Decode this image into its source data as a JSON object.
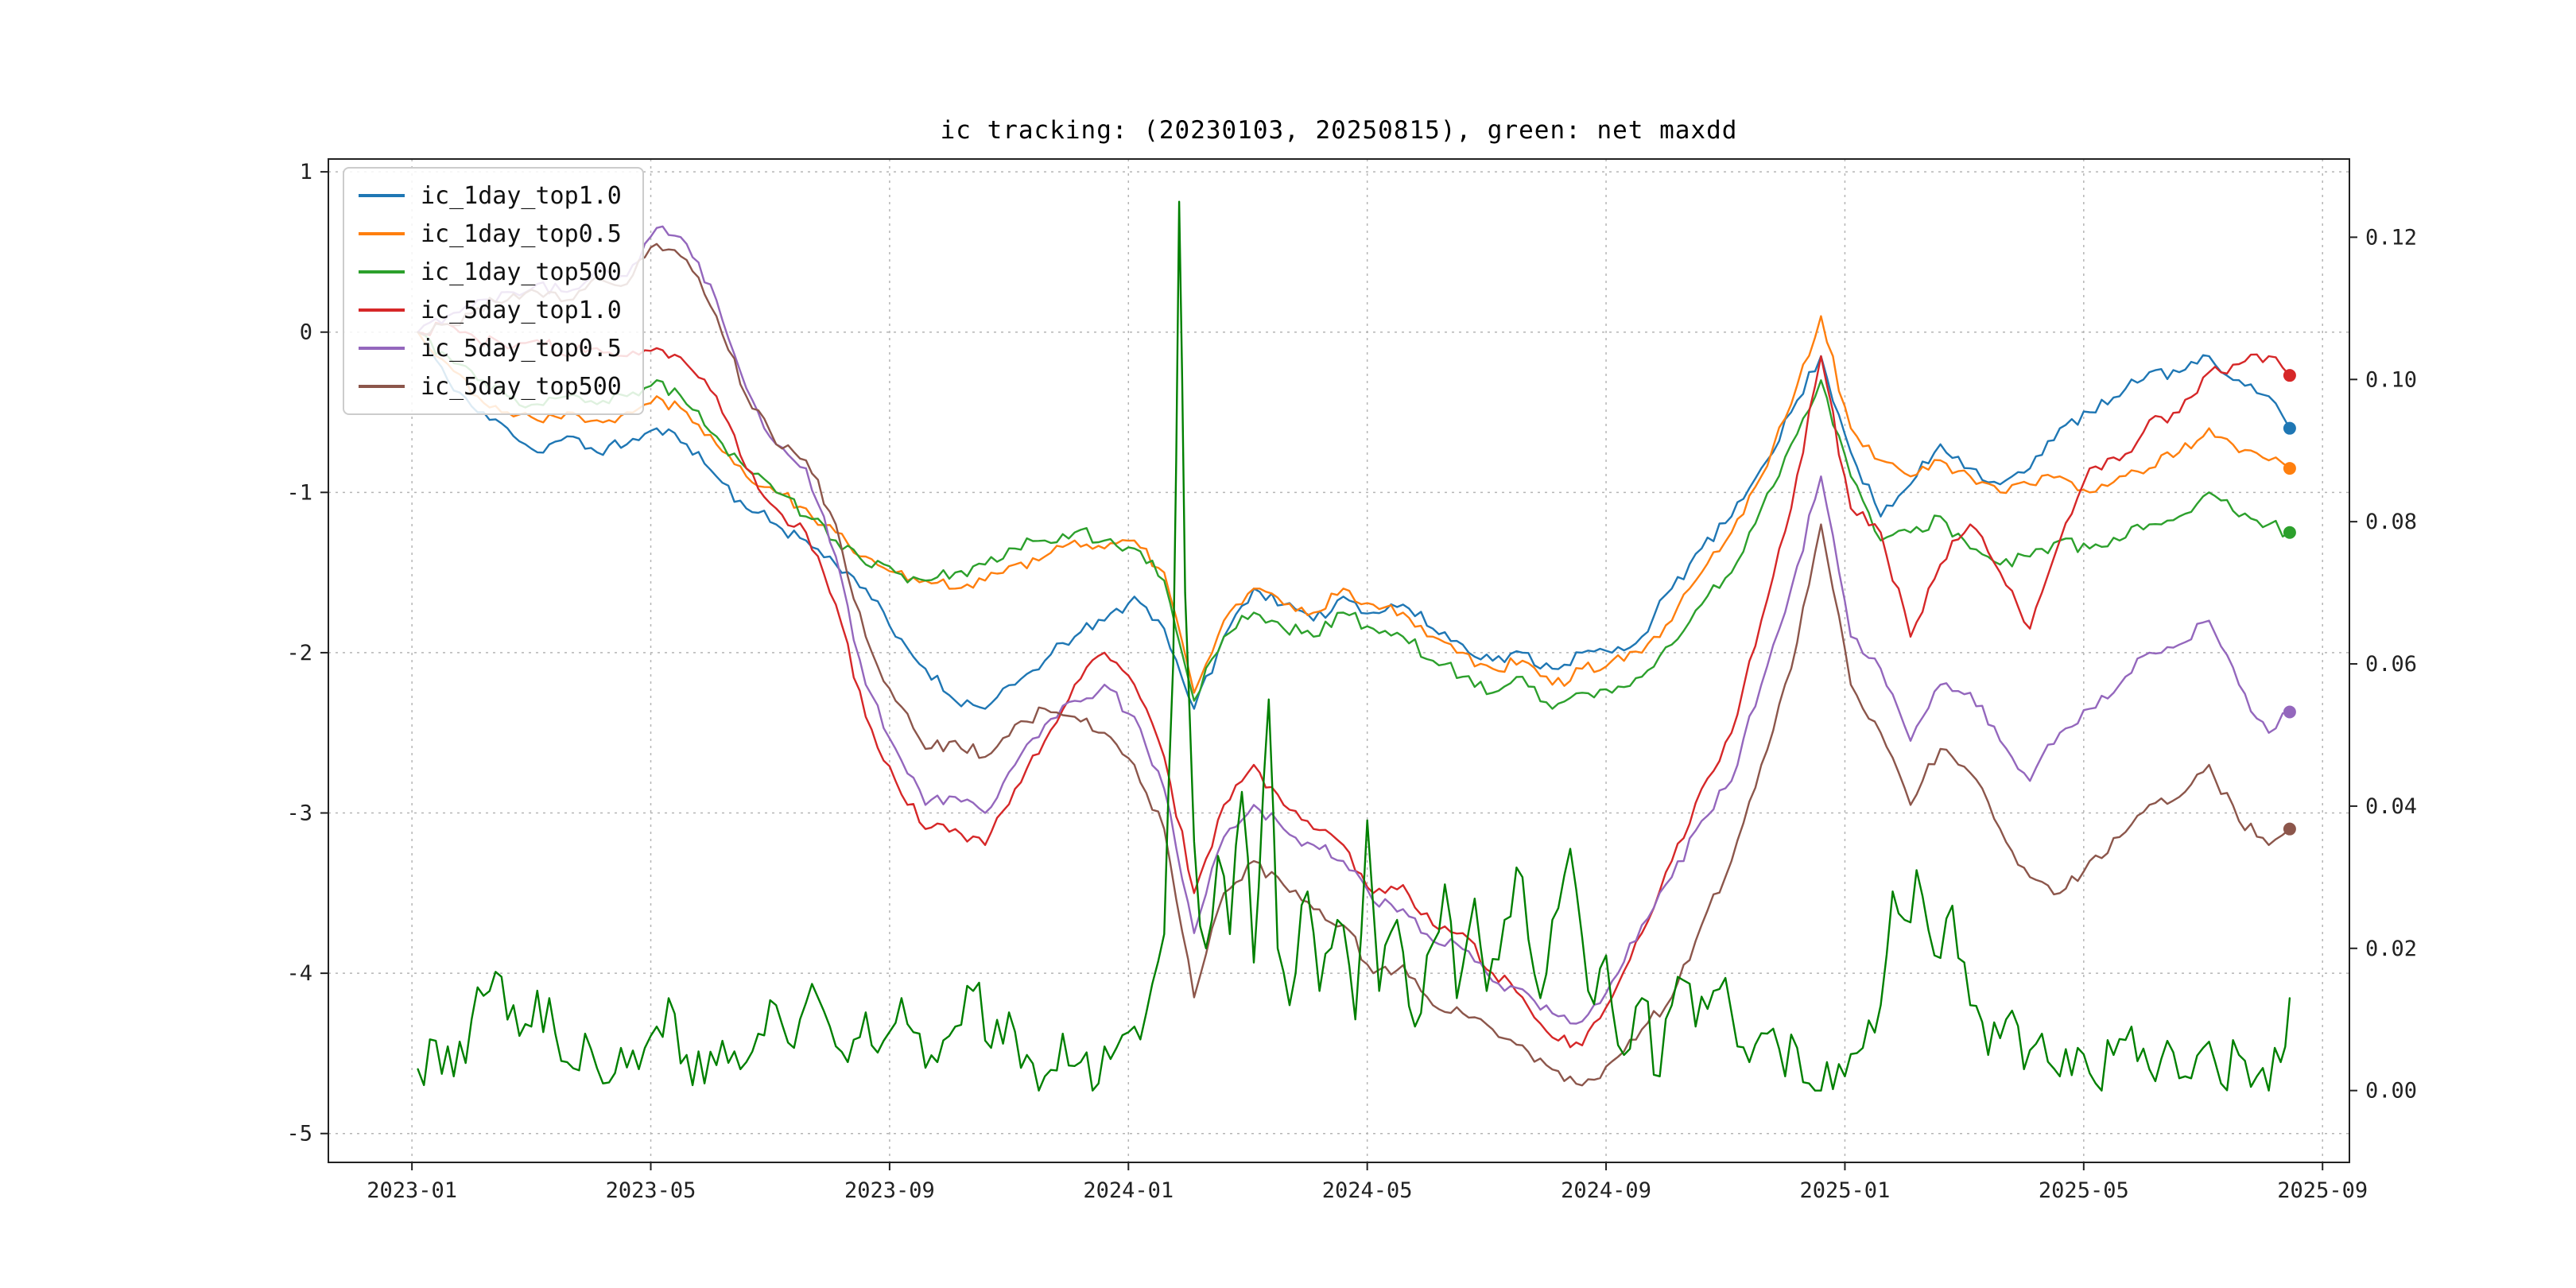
{
  "chart_data": {
    "type": "line",
    "title": "ic tracking: (20230103, 20250815), green: net maxdd",
    "xlabel": "",
    "ylabel_left": "",
    "ylabel_right": "",
    "grid": true,
    "legend_position": "upper-left",
    "xlim": [
      -1.4,
      32.45
    ],
    "left_ylim": [
      -5.18,
      1.08
    ],
    "right_ylim": [
      -0.0101,
      0.131
    ],
    "x_tick_positions": [
      0,
      4,
      8,
      12,
      16,
      20,
      24,
      28,
      32
    ],
    "x_tick_labels": [
      "2023-01",
      "2023-05",
      "2023-09",
      "2024-01",
      "2024-05",
      "2024-09",
      "2025-01",
      "2025-05",
      "2025-09"
    ],
    "left_tick_values": [
      1,
      0,
      -1,
      -2,
      -3,
      -4,
      -5
    ],
    "left_tick_labels": [
      "1",
      "0",
      "-1",
      "-2",
      "-3",
      "-4",
      "-5"
    ],
    "right_tick_values": [
      0.0,
      0.02,
      0.04,
      0.06,
      0.08,
      0.1,
      0.12
    ],
    "right_tick_labels": [
      "0.00",
      "0.02",
      "0.04",
      "0.06",
      "0.08",
      "0.10",
      "0.12"
    ],
    "ic_x": [
      0.1,
      0.6,
      1.1,
      1.6,
      2.1,
      2.6,
      3.1,
      3.6,
      4.1,
      4.6,
      5.1,
      5.6,
      6.1,
      6.6,
      7.1,
      7.6,
      8.1,
      8.6,
      9.1,
      9.6,
      10.1,
      10.6,
      11.1,
      11.6,
      12.1,
      12.6,
      13.1,
      13.6,
      14.1,
      14.6,
      15.1,
      15.6,
      16.1,
      16.6,
      17.1,
      17.6,
      18.1,
      18.6,
      19.1,
      19.6,
      20.1,
      20.6,
      21.1,
      21.6,
      22.1,
      22.6,
      23.1,
      23.6,
      24.1,
      24.6,
      25.1,
      25.6,
      26.1,
      26.6,
      27.1,
      27.6,
      28.1,
      28.6,
      29.1,
      29.6,
      30.1,
      30.6,
      31.1,
      31.45
    ],
    "series": [
      {
        "name": "ic_1day_top1.0",
        "color": "#1f77b4",
        "axis": "left",
        "dot": true,
        "legend": true,
        "noise": 0.05,
        "seed": 11,
        "y": [
          0.0,
          -0.3,
          -0.5,
          -0.6,
          -0.75,
          -0.65,
          -0.75,
          -0.7,
          -0.6,
          -0.7,
          -0.9,
          -1.1,
          -1.2,
          -1.3,
          -1.45,
          -1.6,
          -1.9,
          -2.1,
          -2.3,
          -2.35,
          -2.2,
          -2.05,
          -1.9,
          -1.8,
          -1.65,
          -1.85,
          -2.35,
          -1.9,
          -1.6,
          -1.7,
          -1.8,
          -1.65,
          -1.75,
          -1.7,
          -1.85,
          -1.95,
          -2.05,
          -2.0,
          -2.1,
          -2.0,
          -2.0,
          -1.9,
          -1.6,
          -1.35,
          -1.15,
          -0.85,
          -0.5,
          -0.15,
          -0.75,
          -1.15,
          -0.95,
          -0.7,
          -0.85,
          -0.95,
          -0.85,
          -0.6,
          -0.5,
          -0.4,
          -0.25,
          -0.25,
          -0.15,
          -0.3,
          -0.4,
          -0.6
        ]
      },
      {
        "name": "ic_1day_top0.5",
        "color": "#ff7f0e",
        "axis": "left",
        "dot": true,
        "legend": true,
        "noise": 0.05,
        "seed": 22,
        "y": [
          0.0,
          -0.2,
          -0.4,
          -0.5,
          -0.55,
          -0.5,
          -0.55,
          -0.5,
          -0.4,
          -0.5,
          -0.7,
          -0.9,
          -1.0,
          -1.1,
          -1.25,
          -1.4,
          -1.5,
          -1.55,
          -1.6,
          -1.55,
          -1.45,
          -1.4,
          -1.3,
          -1.35,
          -1.3,
          -1.5,
          -2.25,
          -1.8,
          -1.6,
          -1.7,
          -1.75,
          -1.6,
          -1.7,
          -1.75,
          -1.9,
          -2.0,
          -2.1,
          -2.05,
          -2.2,
          -2.1,
          -2.05,
          -2.0,
          -1.8,
          -1.5,
          -1.25,
          -0.9,
          -0.45,
          0.1,
          -0.6,
          -0.8,
          -0.9,
          -0.8,
          -0.9,
          -1.0,
          -0.95,
          -0.9,
          -1.0,
          -0.9,
          -0.85,
          -0.75,
          -0.6,
          -0.75,
          -0.8,
          -0.85
        ]
      },
      {
        "name": "ic_1day_top500",
        "color": "#2ca02c",
        "axis": "left",
        "dot": true,
        "legend": true,
        "noise": 0.05,
        "seed": 33,
        "y": [
          0.0,
          -0.15,
          -0.3,
          -0.4,
          -0.45,
          -0.4,
          -0.45,
          -0.4,
          -0.3,
          -0.45,
          -0.65,
          -0.85,
          -1.0,
          -1.15,
          -1.3,
          -1.45,
          -1.5,
          -1.55,
          -1.5,
          -1.45,
          -1.35,
          -1.3,
          -1.25,
          -1.3,
          -1.35,
          -1.55,
          -2.3,
          -1.9,
          -1.75,
          -1.85,
          -1.9,
          -1.75,
          -1.85,
          -1.9,
          -2.05,
          -2.15,
          -2.25,
          -2.15,
          -2.35,
          -2.25,
          -2.25,
          -2.15,
          -1.95,
          -1.7,
          -1.5,
          -1.1,
          -0.7,
          -0.3,
          -0.9,
          -1.3,
          -1.25,
          -1.15,
          -1.35,
          -1.45,
          -1.4,
          -1.3,
          -1.35,
          -1.3,
          -1.2,
          -1.15,
          -1.0,
          -1.15,
          -1.2,
          -1.25
        ]
      },
      {
        "name": "ic_5day_top1.0",
        "color": "#d62728",
        "axis": "left",
        "dot": true,
        "legend": true,
        "noise": 0.05,
        "seed": 44,
        "y": [
          0.0,
          0.05,
          -0.05,
          -0.1,
          -0.05,
          -0.15,
          -0.1,
          -0.15,
          -0.1,
          -0.2,
          -0.4,
          -0.85,
          -1.1,
          -1.25,
          -1.7,
          -2.4,
          -2.8,
          -3.1,
          -3.1,
          -3.2,
          -2.85,
          -2.55,
          -2.2,
          -2.0,
          -2.2,
          -2.65,
          -3.5,
          -2.95,
          -2.7,
          -2.95,
          -3.1,
          -3.2,
          -3.5,
          -3.45,
          -3.7,
          -3.75,
          -4.0,
          -4.15,
          -4.4,
          -4.45,
          -4.15,
          -3.75,
          -3.3,
          -2.85,
          -2.5,
          -1.8,
          -1.1,
          -0.15,
          -1.1,
          -1.25,
          -1.9,
          -1.45,
          -1.2,
          -1.5,
          -1.85,
          -1.3,
          -0.85,
          -0.8,
          -0.55,
          -0.5,
          -0.25,
          -0.2,
          -0.15,
          -0.27
        ]
      },
      {
        "name": "ic_5day_top0.5",
        "color": "#9467bd",
        "axis": "left",
        "dot": true,
        "legend": true,
        "noise": 0.05,
        "seed": 55,
        "y": [
          0.0,
          0.1,
          0.2,
          0.25,
          0.3,
          0.25,
          0.4,
          0.35,
          0.65,
          0.55,
          0.2,
          -0.35,
          -0.7,
          -0.85,
          -1.4,
          -2.2,
          -2.6,
          -2.95,
          -2.9,
          -3.0,
          -2.7,
          -2.45,
          -2.3,
          -2.2,
          -2.4,
          -2.85,
          -3.75,
          -3.15,
          -2.95,
          -3.1,
          -3.2,
          -3.3,
          -3.55,
          -3.6,
          -3.8,
          -3.85,
          -4.05,
          -4.1,
          -4.25,
          -4.3,
          -4.05,
          -3.7,
          -3.4,
          -3.05,
          -2.8,
          -2.2,
          -1.6,
          -0.9,
          -1.9,
          -2.1,
          -2.55,
          -2.2,
          -2.25,
          -2.55,
          -2.8,
          -2.5,
          -2.35,
          -2.2,
          -2.0,
          -1.95,
          -1.8,
          -2.2,
          -2.5,
          -2.37
        ]
      },
      {
        "name": "ic_5day_top500",
        "color": "#8c564b",
        "axis": "left",
        "dot": true,
        "legend": true,
        "noise": 0.05,
        "seed": 66,
        "y": [
          0.0,
          0.05,
          0.15,
          0.2,
          0.25,
          0.2,
          0.35,
          0.3,
          0.55,
          0.45,
          0.1,
          -0.4,
          -0.7,
          -0.8,
          -1.2,
          -1.9,
          -2.3,
          -2.6,
          -2.55,
          -2.65,
          -2.45,
          -2.35,
          -2.4,
          -2.5,
          -2.7,
          -3.1,
          -4.15,
          -3.5,
          -3.3,
          -3.45,
          -3.6,
          -3.7,
          -4.0,
          -3.95,
          -4.2,
          -4.25,
          -4.35,
          -4.45,
          -4.6,
          -4.7,
          -4.55,
          -4.35,
          -4.15,
          -3.7,
          -3.3,
          -2.7,
          -2.1,
          -1.2,
          -2.2,
          -2.5,
          -2.95,
          -2.6,
          -2.75,
          -3.1,
          -3.4,
          -3.5,
          -3.3,
          -3.15,
          -2.95,
          -2.9,
          -2.7,
          -3.05,
          -3.2,
          -3.1
        ]
      },
      {
        "name": "net_maxdd",
        "color": "#008000",
        "axis": "right",
        "dot": false,
        "legend": false,
        "noise": 0.0045,
        "seed": 77,
        "x": [
          0.1,
          0.4,
          0.7,
          1.0,
          1.3,
          1.5,
          1.7,
          2.0,
          2.3,
          2.6,
          2.9,
          3.2,
          3.5,
          3.8,
          4.1,
          4.3,
          4.6,
          4.9,
          5.2,
          5.5,
          5.8,
          6.1,
          6.4,
          6.7,
          7.0,
          7.3,
          7.6,
          7.9,
          8.2,
          8.5,
          8.8,
          9.1,
          9.4,
          9.7,
          10.0,
          10.3,
          10.6,
          10.9,
          11.2,
          11.5,
          11.8,
          12.1,
          12.4,
          12.6,
          12.75,
          12.85,
          12.95,
          13.1,
          13.3,
          13.5,
          13.7,
          13.9,
          14.1,
          14.35,
          14.5,
          14.7,
          15.0,
          15.2,
          15.5,
          15.8,
          16.0,
          16.2,
          16.5,
          16.8,
          17.0,
          17.3,
          17.5,
          17.8,
          18.0,
          18.3,
          18.6,
          18.9,
          19.1,
          19.4,
          19.7,
          20.0,
          20.3,
          20.6,
          20.9,
          21.2,
          21.5,
          21.8,
          22.1,
          22.4,
          22.7,
          23.0,
          23.2,
          23.4,
          23.7,
          24.0,
          24.3,
          24.6,
          24.8,
          25.0,
          25.2,
          25.5,
          25.8,
          26.1,
          26.4,
          26.7,
          27.0,
          27.3,
          27.6,
          27.9,
          28.2,
          28.5,
          28.8,
          29.1,
          29.4,
          29.7,
          30.0,
          30.3,
          30.6,
          30.9,
          31.1,
          31.3,
          31.45
        ],
        "y": [
          0.003,
          0.007,
          0.002,
          0.01,
          0.014,
          0.016,
          0.012,
          0.009,
          0.013,
          0.004,
          0.008,
          0.001,
          0.006,
          0.003,
          0.009,
          0.013,
          0.005,
          0.001,
          0.007,
          0.003,
          0.008,
          0.012,
          0.006,
          0.015,
          0.009,
          0.004,
          0.011,
          0.007,
          0.013,
          0.008,
          0.004,
          0.009,
          0.014,
          0.006,
          0.011,
          0.005,
          0.002,
          0.008,
          0.004,
          0.001,
          0.006,
          0.009,
          0.015,
          0.022,
          0.06,
          0.125,
          0.07,
          0.035,
          0.02,
          0.033,
          0.022,
          0.042,
          0.018,
          0.055,
          0.02,
          0.012,
          0.028,
          0.014,
          0.024,
          0.01,
          0.038,
          0.014,
          0.024,
          0.009,
          0.019,
          0.029,
          0.013,
          0.027,
          0.014,
          0.024,
          0.03,
          0.013,
          0.024,
          0.034,
          0.014,
          0.019,
          0.005,
          0.013,
          0.002,
          0.016,
          0.009,
          0.014,
          0.011,
          0.004,
          0.008,
          0.002,
          0.006,
          0.001,
          0.004,
          0.002,
          0.006,
          0.012,
          0.028,
          0.024,
          0.031,
          0.019,
          0.026,
          0.012,
          0.005,
          0.01,
          0.003,
          0.008,
          0.002,
          0.006,
          0.001,
          0.005,
          0.009,
          0.003,
          0.007,
          0.002,
          0.006,
          0.001,
          0.005,
          0.002,
          0.0,
          0.004,
          0.013
        ]
      }
    ]
  },
  "colors": {
    "grid": "#b5b5b5",
    "spine": "#222222",
    "tick_text": "#222222",
    "legend_border": "#cccccc"
  }
}
